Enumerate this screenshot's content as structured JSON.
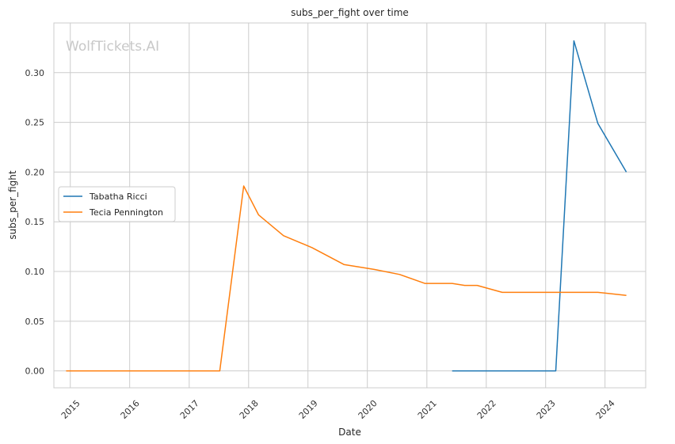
{
  "chart_data": {
    "type": "line",
    "title": "subs_per_fight over time",
    "xlabel": "Date",
    "ylabel": "subs_per_fight",
    "watermark": "WolfTickets.AI",
    "x_ticks": [
      "2015",
      "2016",
      "2017",
      "2018",
      "2019",
      "2020",
      "2021",
      "2022",
      "2023",
      "2024"
    ],
    "y_ticks": [
      "0.00",
      "0.05",
      "0.10",
      "0.15",
      "0.20",
      "0.25",
      "0.30"
    ],
    "ylim": [
      -0.017,
      0.35
    ],
    "xlim": [
      "2014-09-22",
      "2024-09-07"
    ],
    "grid": true,
    "legend_position": "center-left",
    "series": [
      {
        "name": "Tabatha Ricci",
        "color": "#1f77b4",
        "points": [
          [
            "2021-06-05",
            0.0
          ],
          [
            "2023-03-04",
            0.0
          ],
          [
            "2023-06-24",
            0.332
          ],
          [
            "2023-11-18",
            0.249
          ],
          [
            "2024-05-11",
            0.2
          ]
        ]
      },
      {
        "name": "Tecia Pennington",
        "color": "#ff7f0e",
        "points": [
          [
            "2014-12-06",
            0.0
          ],
          [
            "2017-07-08",
            0.0
          ],
          [
            "2017-12-02",
            0.186
          ],
          [
            "2018-03-03",
            0.157
          ],
          [
            "2018-08-04",
            0.136
          ],
          [
            "2019-01-26",
            0.124
          ],
          [
            "2019-08-10",
            0.107
          ],
          [
            "2020-02-15",
            0.102
          ],
          [
            "2020-07-18",
            0.097
          ],
          [
            "2020-12-19",
            0.088
          ],
          [
            "2021-06-05",
            0.088
          ],
          [
            "2021-08-21",
            0.086
          ],
          [
            "2021-11-06",
            0.086
          ],
          [
            "2022-04-09",
            0.079
          ],
          [
            "2023-03-04",
            0.079
          ],
          [
            "2023-11-18",
            0.079
          ],
          [
            "2024-05-11",
            0.076
          ]
        ]
      }
    ]
  }
}
